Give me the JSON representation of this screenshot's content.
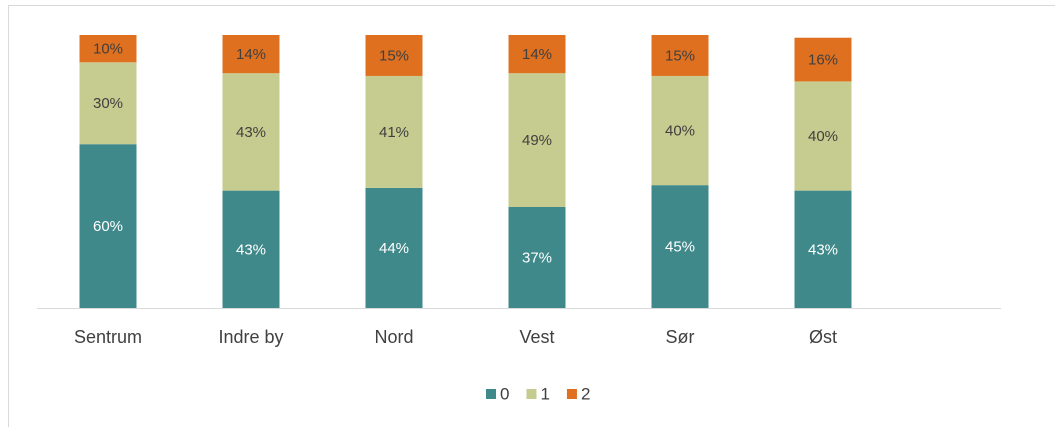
{
  "chart_data": {
    "type": "stacked_bar",
    "categories": [
      "Sentrum",
      "Indre by",
      "Nord",
      "Vest",
      "Sør",
      "Øst"
    ],
    "series": [
      {
        "name": "0",
        "color": "#3f898b",
        "values": [
          60,
          43,
          44,
          37,
          45,
          43
        ],
        "value_labels": [
          "60%",
          "43%",
          "44%",
          "37%",
          "45%",
          "43%"
        ]
      },
      {
        "name": "1",
        "color": "#c6cc8f",
        "values": [
          30,
          43,
          41,
          49,
          40,
          40
        ],
        "value_labels": [
          "30%",
          "43%",
          "41%",
          "49%",
          "40%",
          "40%"
        ]
      },
      {
        "name": "2",
        "color": "#df701f",
        "values": [
          10,
          14,
          15,
          14,
          15,
          16
        ],
        "value_labels": [
          "10%",
          "14%",
          "15%",
          "14%",
          "15%",
          "16%"
        ]
      }
    ],
    "ylim": [
      0,
      100
    ],
    "legend": "bottom"
  }
}
